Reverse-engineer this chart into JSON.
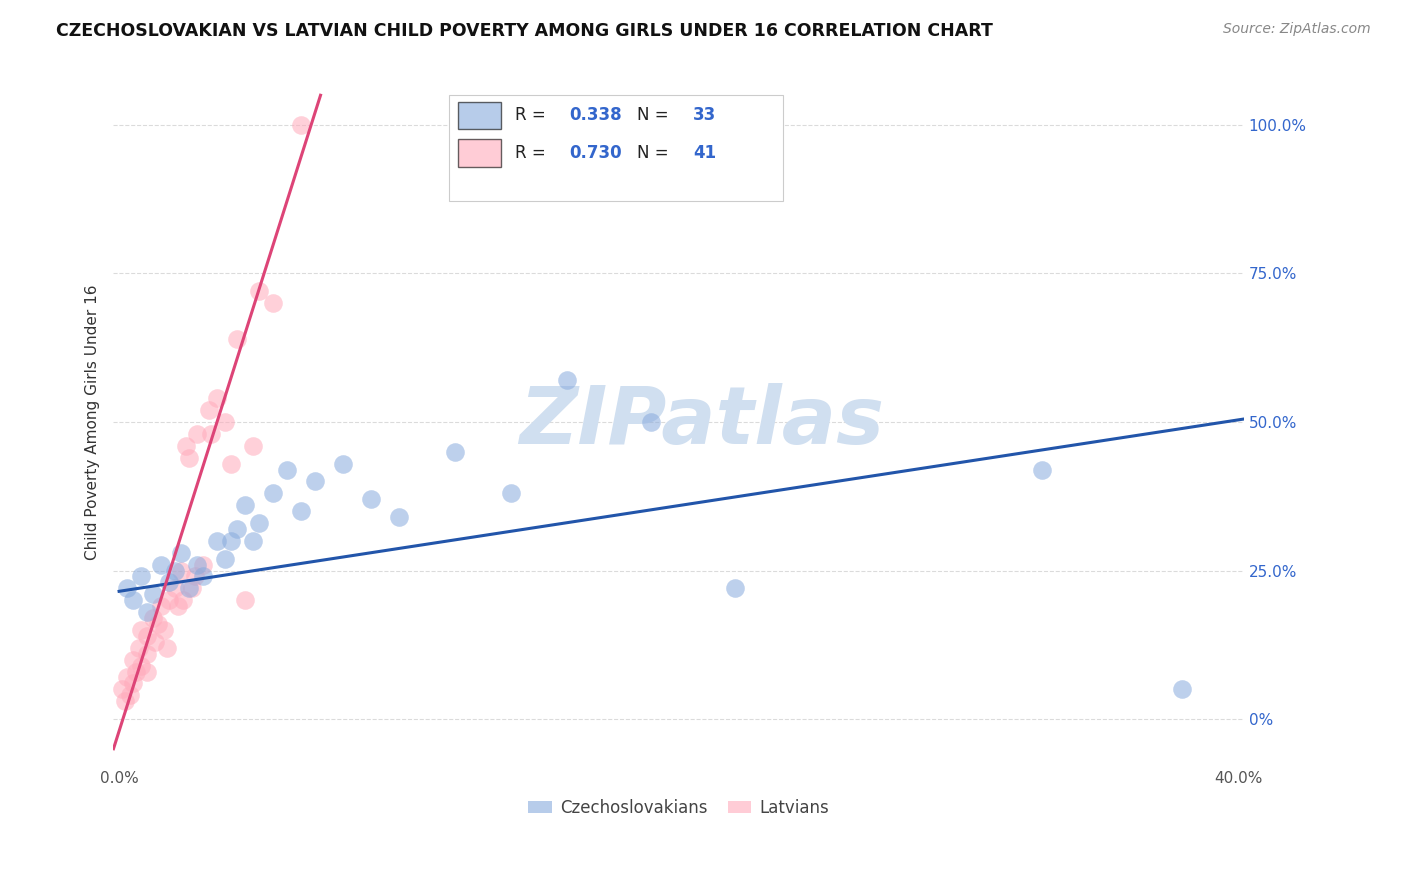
{
  "title": "CZECHOSLOVAKIAN VS LATVIAN CHILD POVERTY AMONG GIRLS UNDER 16 CORRELATION CHART",
  "source": "Source: ZipAtlas.com",
  "ylabel": "Child Poverty Among Girls Under 16",
  "xlim": [
    -0.002,
    0.402
  ],
  "ylim": [
    -0.08,
    1.08
  ],
  "y_tick_positions": [
    0.0,
    0.25,
    0.5,
    0.75,
    1.0
  ],
  "y_tick_labels_right": [
    "0%",
    "25.0%",
    "50.0%",
    "75.0%",
    "100.0%"
  ],
  "x_tick_positions": [
    0.0,
    0.05,
    0.1,
    0.15,
    0.2,
    0.25,
    0.3,
    0.35,
    0.4
  ],
  "x_tick_labels": [
    "0.0%",
    "",
    "",
    "",
    "",
    "",
    "",
    "",
    "40.0%"
  ],
  "legend1_R": "0.338",
  "legend1_N": "33",
  "legend2_R": "0.730",
  "legend2_N": "41",
  "blue_color": "#88aadd",
  "pink_color": "#ffaabb",
  "blue_line_color": "#2255aa",
  "pink_line_color": "#dd4477",
  "watermark_color": "#d0dff0",
  "background_color": "#ffffff",
  "grid_color": "#cccccc",
  "blue_scatter_x": [
    0.003,
    0.005,
    0.008,
    0.01,
    0.012,
    0.015,
    0.018,
    0.02,
    0.022,
    0.025,
    0.028,
    0.03,
    0.035,
    0.038,
    0.04,
    0.042,
    0.045,
    0.048,
    0.05,
    0.055,
    0.06,
    0.065,
    0.07,
    0.08,
    0.09,
    0.1,
    0.12,
    0.14,
    0.16,
    0.19,
    0.22,
    0.33,
    0.38
  ],
  "blue_scatter_y": [
    0.22,
    0.2,
    0.24,
    0.18,
    0.21,
    0.26,
    0.23,
    0.25,
    0.28,
    0.22,
    0.26,
    0.24,
    0.3,
    0.27,
    0.3,
    0.32,
    0.36,
    0.3,
    0.33,
    0.38,
    0.42,
    0.35,
    0.4,
    0.43,
    0.37,
    0.34,
    0.45,
    0.38,
    0.57,
    0.5,
    0.22,
    0.42,
    0.05
  ],
  "pink_scatter_x": [
    0.001,
    0.002,
    0.003,
    0.004,
    0.005,
    0.005,
    0.006,
    0.007,
    0.008,
    0.008,
    0.01,
    0.01,
    0.01,
    0.012,
    0.013,
    0.014,
    0.015,
    0.016,
    0.017,
    0.018,
    0.02,
    0.021,
    0.022,
    0.023,
    0.024,
    0.025,
    0.026,
    0.027,
    0.028,
    0.03,
    0.032,
    0.033,
    0.035,
    0.038,
    0.04,
    0.042,
    0.045,
    0.048,
    0.05,
    0.055,
    0.065
  ],
  "pink_scatter_y": [
    0.05,
    0.03,
    0.07,
    0.04,
    0.06,
    0.1,
    0.08,
    0.12,
    0.09,
    0.15,
    0.11,
    0.14,
    0.08,
    0.17,
    0.13,
    0.16,
    0.19,
    0.15,
    0.12,
    0.2,
    0.22,
    0.19,
    0.25,
    0.2,
    0.46,
    0.44,
    0.22,
    0.24,
    0.48,
    0.26,
    0.52,
    0.48,
    0.54,
    0.5,
    0.43,
    0.64,
    0.2,
    0.46,
    0.72,
    0.7,
    1.0
  ],
  "blue_line_x": [
    0.0,
    0.402
  ],
  "blue_line_y": [
    0.215,
    0.505
  ],
  "pink_line_x": [
    -0.002,
    0.072
  ],
  "pink_line_y": [
    -0.05,
    1.05
  ]
}
